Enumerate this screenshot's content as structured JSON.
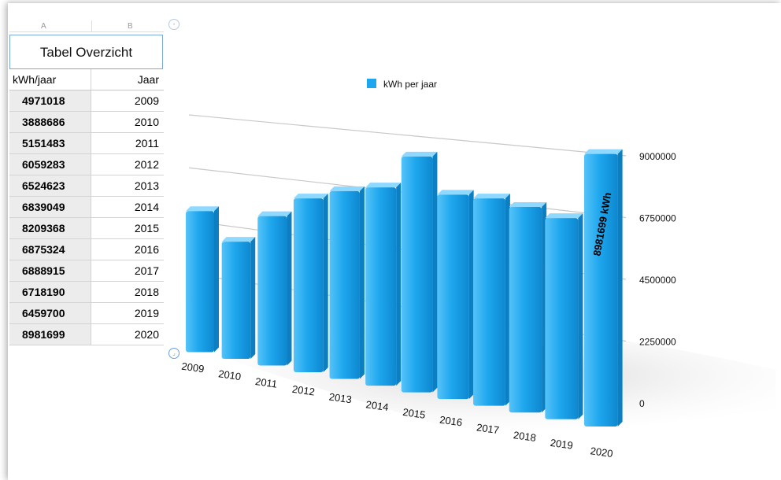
{
  "spreadsheet": {
    "column_headers": [
      "A",
      "B"
    ],
    "table_title": "Tabel Overzicht",
    "header": {
      "col1": "kWh/jaar",
      "col2": "Jaar"
    },
    "rows": [
      {
        "kwh": "4971018",
        "jaar": "2009"
      },
      {
        "kwh": "3888686",
        "jaar": "2010"
      },
      {
        "kwh": "5151483",
        "jaar": "2011"
      },
      {
        "kwh": "6059283",
        "jaar": "2012"
      },
      {
        "kwh": "6524623",
        "jaar": "2013"
      },
      {
        "kwh": "6839049",
        "jaar": "2014"
      },
      {
        "kwh": "8209368",
        "jaar": "2015"
      },
      {
        "kwh": "6875324",
        "jaar": "2016"
      },
      {
        "kwh": "6888915",
        "jaar": "2017"
      },
      {
        "kwh": "6718190",
        "jaar": "2018"
      },
      {
        "kwh": "6459700",
        "jaar": "2019"
      },
      {
        "kwh": "8981699",
        "jaar": "2020"
      }
    ]
  },
  "chart_data": {
    "type": "bar",
    "categories": [
      "2009",
      "2010",
      "2011",
      "2012",
      "2013",
      "2014",
      "2015",
      "2016",
      "2017",
      "2018",
      "2019",
      "2020"
    ],
    "series": [
      {
        "name": "kWh per jaar",
        "values": [
          4971018,
          3888686,
          5151483,
          6059283,
          6524623,
          6839049,
          8209368,
          6875324,
          6888915,
          6718190,
          6459700,
          8981699
        ]
      }
    ],
    "yticks": [
      "0",
      "2250000",
      "4500000",
      "6750000",
      "9000000"
    ],
    "ylim": [
      0,
      9000000
    ],
    "legend": "kWh per jaar",
    "legend_position": "top",
    "data_label": "8981699 kWh",
    "bar_color": "#1ea7ee",
    "grid": true,
    "style": "3d-perspective"
  }
}
